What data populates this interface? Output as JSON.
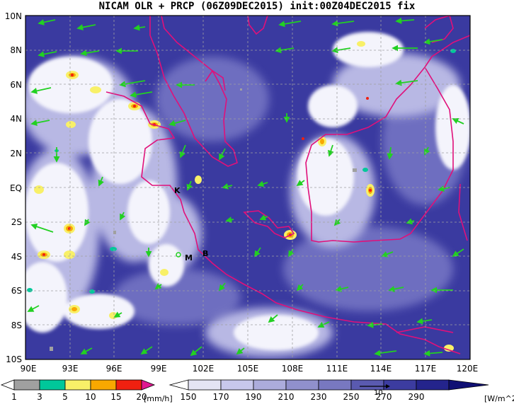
{
  "title": "NICAM OLR + PRCP (06Z09DEC2015) init:00Z04DEC2015 fix",
  "map": {
    "lat_labels": [
      "10N",
      "8N",
      "6N",
      "4N",
      "2N",
      "EQ",
      "2S",
      "4S",
      "6S",
      "8S",
      "10S"
    ],
    "lon_labels": [
      "90E",
      "93E",
      "96E",
      "99E",
      "102E",
      "105E",
      "108E",
      "111E",
      "114E",
      "117E",
      "120E"
    ],
    "place_marks": [
      "K",
      "M",
      "B"
    ]
  },
  "legend_prcp": {
    "ticks": [
      "1",
      "3",
      "5",
      "10",
      "15",
      "20"
    ],
    "unit": "[mm/h]",
    "colors": [
      "#ffffff",
      "#a0a0a0",
      "#00c89a",
      "#f8f068",
      "#f8a800",
      "#f02010",
      "#e01890"
    ]
  },
  "legend_olr": {
    "ticks": [
      "150",
      "170",
      "190",
      "210",
      "230",
      "250",
      "270",
      "290"
    ],
    "unit": "[W/m^2]",
    "colors": [
      "#ffffff",
      "#e4e4f4",
      "#c8c8ec",
      "#acacdc",
      "#9090cc",
      "#7878c0",
      "#5a5ab0",
      "#3c3ca0",
      "#24248c",
      "#101074"
    ],
    "vector_ref": "10"
  },
  "colors": {
    "coast": "#e0107a",
    "wind": "#22d022",
    "background": "#3a3aa0"
  }
}
